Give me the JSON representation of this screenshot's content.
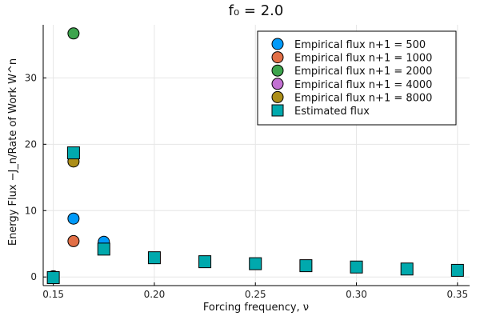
{
  "chart_data": {
    "type": "scatter",
    "title": "f₀ = 2.0",
    "xlabel": "Forcing frequency, ν",
    "ylabel": "Energy Flux −J_n/Rate of Work W^n",
    "xlim": [
      0.145,
      0.356
    ],
    "ylim": [
      -1.3,
      38.0
    ],
    "xticks": [
      0.15,
      0.2,
      0.25,
      0.3,
      0.35
    ],
    "xtick_labels": [
      "0.15",
      "0.20",
      "0.25",
      "0.30",
      "0.35"
    ],
    "yticks": [
      0,
      10,
      20,
      30
    ],
    "ytick_labels": [
      "0",
      "10",
      "20",
      "30"
    ],
    "grid": true,
    "legend_position": "top-right",
    "series": [
      {
        "name": "Empirical flux n+1 = 500",
        "marker": "circle",
        "color": "#009af9",
        "points": [
          [
            0.15,
            0.1
          ],
          [
            0.16,
            8.8
          ],
          [
            0.175,
            5.3
          ]
        ]
      },
      {
        "name": "Empirical flux n+1 = 1000",
        "marker": "circle",
        "color": "#e26f46",
        "points": [
          [
            0.15,
            0.0
          ],
          [
            0.16,
            5.4
          ]
        ]
      },
      {
        "name": "Empirical flux n+1 = 2000",
        "marker": "circle",
        "color": "#3da44d",
        "points": [
          [
            0.16,
            36.7
          ]
        ]
      },
      {
        "name": "Empirical flux n+1 = 4000",
        "marker": "circle",
        "color": "#c271d2",
        "points": []
      },
      {
        "name": "Empirical flux n+1 = 8000",
        "marker": "circle",
        "color": "#ac8e18",
        "points": [
          [
            0.16,
            17.4
          ]
        ]
      },
      {
        "name": "Estimated flux",
        "marker": "square",
        "color": "#00a9ad",
        "points": [
          [
            0.15,
            -0.1
          ],
          [
            0.16,
            18.7
          ],
          [
            0.175,
            4.2
          ],
          [
            0.2,
            2.9
          ],
          [
            0.225,
            2.3
          ],
          [
            0.25,
            2.0
          ],
          [
            0.275,
            1.7
          ],
          [
            0.3,
            1.5
          ],
          [
            0.325,
            1.2
          ],
          [
            0.35,
            1.0
          ]
        ]
      }
    ]
  }
}
